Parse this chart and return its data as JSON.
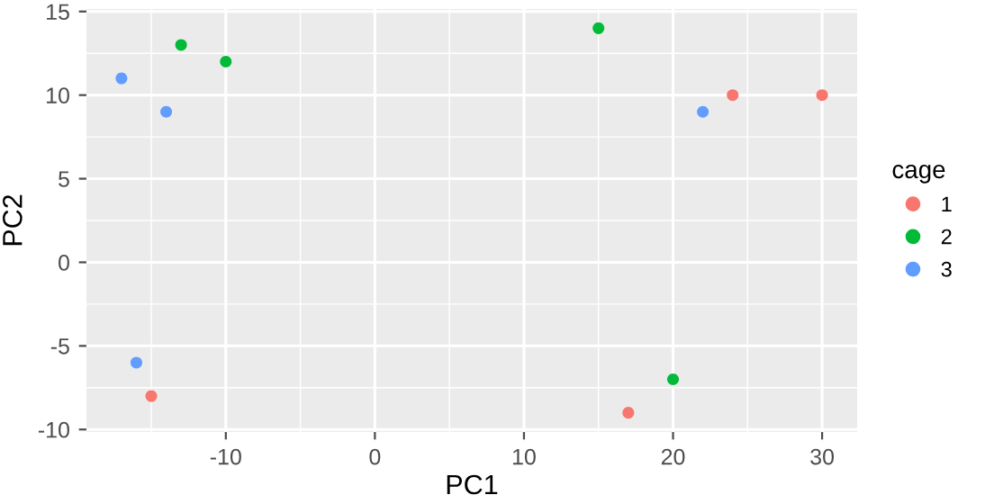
{
  "chart_data": {
    "type": "scatter",
    "xlabel": "PC1",
    "ylabel": "PC2",
    "legend_title": "cage",
    "legend": "right",
    "grid": true,
    "marker": "circle",
    "xlim": [
      -19.35,
      32.35
    ],
    "ylim": [
      -10.15,
      15.15
    ],
    "xticks": [
      -10,
      0,
      10,
      20,
      30
    ],
    "yticks": [
      -10,
      -5,
      0,
      5,
      10,
      15
    ],
    "series": [
      {
        "name": "1",
        "color": "#f8766d",
        "x": [
          24,
          30,
          17,
          -15
        ],
        "values": [
          10,
          10,
          -9,
          -8
        ]
      },
      {
        "name": "2",
        "color": "#00ba38",
        "x": [
          -13,
          -10,
          15,
          20
        ],
        "values": [
          13,
          12,
          14,
          -7
        ]
      },
      {
        "name": "3",
        "color": "#619cff",
        "x": [
          -17,
          -14,
          22,
          -16
        ],
        "values": [
          11,
          9,
          9,
          -6
        ]
      }
    ]
  }
}
